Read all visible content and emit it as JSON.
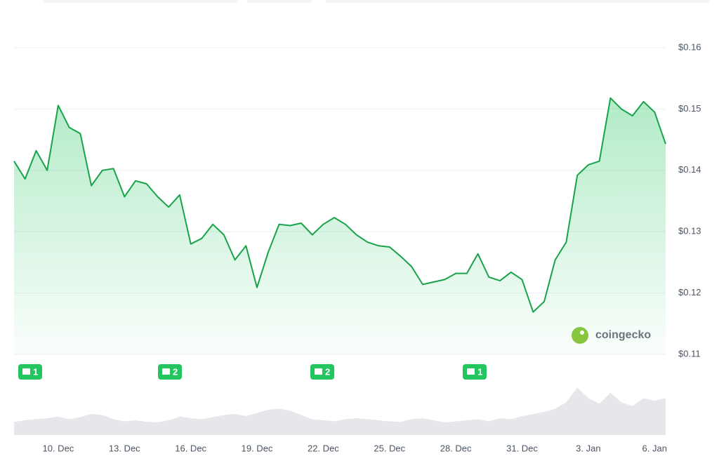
{
  "chart_data": {
    "type": "line",
    "color": "#18a34a",
    "grid": true,
    "categories": [
      null,
      null,
      null,
      null,
      "10. Dec",
      null,
      null,
      null,
      null,
      null,
      "13. Dec",
      null,
      null,
      null,
      null,
      null,
      "16. Dec",
      null,
      null,
      null,
      null,
      null,
      "19. Dec",
      null,
      null,
      null,
      null,
      null,
      "22. Dec",
      null,
      null,
      null,
      null,
      null,
      "25. Dec",
      null,
      null,
      null,
      null,
      null,
      "28. Dec",
      null,
      null,
      null,
      null,
      null,
      "31. Dec",
      null,
      null,
      null,
      null,
      null,
      "3. Jan",
      null,
      null,
      null,
      null,
      null,
      "6. Jan",
      null
    ],
    "values": [
      0.1415,
      0.1386,
      0.1432,
      0.14,
      0.1506,
      0.147,
      0.146,
      0.1375,
      0.14,
      0.1403,
      0.1357,
      0.1383,
      0.1378,
      0.1357,
      0.134,
      0.136,
      0.128,
      0.1289,
      0.1312,
      0.1295,
      0.1254,
      0.1277,
      0.1209,
      0.1266,
      0.1312,
      0.131,
      0.1314,
      0.1295,
      0.1312,
      0.1323,
      0.1312,
      0.1295,
      0.1283,
      0.1277,
      0.1275,
      0.126,
      0.1243,
      0.1214,
      0.1218,
      0.1222,
      0.1232,
      0.1232,
      0.1264,
      0.1226,
      0.122,
      0.1234,
      0.1222,
      0.1169,
      0.1186,
      0.1254,
      0.1283,
      0.1392,
      0.1409,
      0.1415,
      0.1518,
      0.15,
      0.1489,
      0.1512,
      0.1495,
      0.1443
    ],
    "ylim": [
      0.11,
      0.16
    ],
    "yticks": [
      {
        "value": 0.11,
        "label": "$0.11"
      },
      {
        "value": 0.12,
        "label": "$0.12"
      },
      {
        "value": 0.13,
        "label": "$0.13"
      },
      {
        "value": 0.14,
        "label": "$0.14"
      },
      {
        "value": 0.15,
        "label": "$0.15"
      },
      {
        "value": 0.16,
        "label": "$0.16"
      }
    ],
    "volume_values": [
      25,
      28,
      30,
      32,
      35,
      30,
      34,
      40,
      38,
      30,
      26,
      28,
      25,
      24,
      28,
      35,
      32,
      30,
      34,
      38,
      40,
      36,
      42,
      48,
      50,
      46,
      38,
      30,
      28,
      26,
      30,
      32,
      30,
      28,
      26,
      25,
      30,
      32,
      28,
      24,
      26,
      28,
      30,
      26,
      32,
      30,
      36,
      40,
      44,
      50,
      62,
      90,
      70,
      60,
      80,
      62,
      55,
      70,
      65,
      70
    ],
    "volume_ylim": [
      0,
      100
    ],
    "news": [
      "1",
      "2",
      "2",
      "1"
    ],
    "watermark": "coingecko"
  }
}
